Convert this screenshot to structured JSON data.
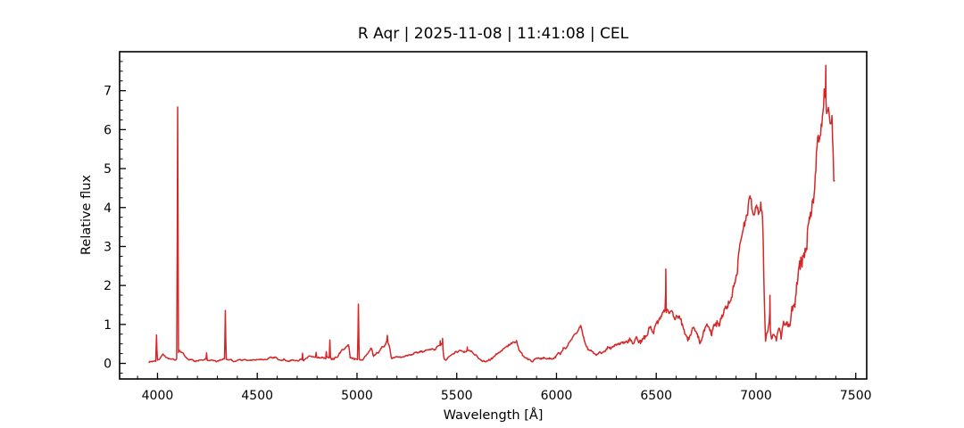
{
  "chart_data": {
    "type": "line",
    "title": "R Aqr | 2025-11-08 | 11:41:08 | CEL",
    "xlabel": "Wavelength [Å]",
    "ylabel": "Relative flux",
    "xlim": [
      3810,
      7555
    ],
    "ylim": [
      -0.4,
      8.0
    ],
    "x_major_ticks": [
      4000,
      4500,
      5000,
      5500,
      6000,
      6500,
      7000,
      7500
    ],
    "x_minor_step": 100,
    "y_major_ticks": [
      0,
      1,
      2,
      3,
      4,
      5,
      6,
      7
    ],
    "y_minor_step": 0.25,
    "grid": false,
    "legend": "none",
    "line_color": "#d62728",
    "background_color": "#ffffff",
    "wavelength_range": [
      3958,
      7395
    ],
    "sample_step": 3,
    "noise_seed": 7,
    "envelope": [
      [
        3958,
        0.05
      ],
      [
        3975,
        0.07
      ],
      [
        3992,
        0.08
      ],
      [
        4008,
        0.1
      ],
      [
        4028,
        0.22
      ],
      [
        4045,
        0.12
      ],
      [
        4065,
        0.08
      ],
      [
        4085,
        0.09
      ],
      [
        4098,
        0.12
      ],
      [
        4108,
        0.33
      ],
      [
        4122,
        0.28
      ],
      [
        4138,
        0.16
      ],
      [
        4155,
        0.1
      ],
      [
        4180,
        0.08
      ],
      [
        4210,
        0.08
      ],
      [
        4242,
        0.1
      ],
      [
        4262,
        0.08
      ],
      [
        4295,
        0.07
      ],
      [
        4320,
        0.08
      ],
      [
        4337,
        0.1
      ],
      [
        4355,
        0.08
      ],
      [
        4385,
        0.06
      ],
      [
        4415,
        0.08
      ],
      [
        4445,
        0.09
      ],
      [
        4475,
        0.07
      ],
      [
        4505,
        0.08
      ],
      [
        4535,
        0.09
      ],
      [
        4565,
        0.12
      ],
      [
        4590,
        0.12
      ],
      [
        4615,
        0.09
      ],
      [
        4640,
        0.08
      ],
      [
        4665,
        0.09
      ],
      [
        4690,
        0.1
      ],
      [
        4715,
        0.12
      ],
      [
        4740,
        0.12
      ],
      [
        4765,
        0.14
      ],
      [
        4790,
        0.13
      ],
      [
        4815,
        0.13
      ],
      [
        4840,
        0.15
      ],
      [
        4858,
        0.18
      ],
      [
        4880,
        0.15
      ],
      [
        4905,
        0.22
      ],
      [
        4930,
        0.32
      ],
      [
        4950,
        0.45
      ],
      [
        4958,
        0.5
      ],
      [
        4966,
        0.12
      ],
      [
        4982,
        0.1
      ],
      [
        5000,
        0.12
      ],
      [
        5015,
        0.09
      ],
      [
        5035,
        0.16
      ],
      [
        5055,
        0.3
      ],
      [
        5072,
        0.43
      ],
      [
        5082,
        0.16
      ],
      [
        5095,
        0.24
      ],
      [
        5115,
        0.35
      ],
      [
        5135,
        0.46
      ],
      [
        5150,
        0.55
      ],
      [
        5162,
        0.42
      ],
      [
        5172,
        0.12
      ],
      [
        5185,
        0.14
      ],
      [
        5215,
        0.18
      ],
      [
        5245,
        0.21
      ],
      [
        5275,
        0.24
      ],
      [
        5305,
        0.27
      ],
      [
        5335,
        0.3
      ],
      [
        5365,
        0.32
      ],
      [
        5395,
        0.36
      ],
      [
        5414,
        0.46
      ],
      [
        5427,
        0.52
      ],
      [
        5436,
        0.1
      ],
      [
        5455,
        0.14
      ],
      [
        5478,
        0.24
      ],
      [
        5498,
        0.32
      ],
      [
        5515,
        0.32
      ],
      [
        5535,
        0.28
      ],
      [
        5553,
        0.33
      ],
      [
        5572,
        0.3
      ],
      [
        5592,
        0.22
      ],
      [
        5612,
        0.15
      ],
      [
        5632,
        0.1
      ],
      [
        5652,
        0.08
      ],
      [
        5672,
        0.14
      ],
      [
        5695,
        0.22
      ],
      [
        5718,
        0.3
      ],
      [
        5742,
        0.38
      ],
      [
        5766,
        0.46
      ],
      [
        5788,
        0.55
      ],
      [
        5800,
        0.6
      ],
      [
        5812,
        0.35
      ],
      [
        5830,
        0.2
      ],
      [
        5852,
        0.09
      ],
      [
        5875,
        0.05
      ],
      [
        5898,
        0.08
      ],
      [
        5920,
        0.12
      ],
      [
        5942,
        0.15
      ],
      [
        5962,
        0.13
      ],
      [
        5985,
        0.17
      ],
      [
        6008,
        0.23
      ],
      [
        6030,
        0.3
      ],
      [
        6052,
        0.42
      ],
      [
        6074,
        0.57
      ],
      [
        6096,
        0.75
      ],
      [
        6112,
        0.92
      ],
      [
        6122,
        1.0
      ],
      [
        6132,
        0.72
      ],
      [
        6145,
        0.45
      ],
      [
        6158,
        0.32
      ],
      [
        6175,
        0.28
      ],
      [
        6200,
        0.23
      ],
      [
        6225,
        0.27
      ],
      [
        6250,
        0.32
      ],
      [
        6275,
        0.37
      ],
      [
        6300,
        0.42
      ],
      [
        6325,
        0.47
      ],
      [
        6350,
        0.52
      ],
      [
        6375,
        0.56
      ],
      [
        6400,
        0.6
      ],
      [
        6425,
        0.68
      ],
      [
        6450,
        0.8
      ],
      [
        6470,
        0.93
      ],
      [
        6490,
        0.87
      ],
      [
        6512,
        1.05
      ],
      [
        6532,
        1.2
      ],
      [
        6550,
        1.33
      ],
      [
        6565,
        1.4
      ],
      [
        6582,
        1.28
      ],
      [
        6600,
        1.18
      ],
      [
        6618,
        1.1
      ],
      [
        6636,
        0.78
      ],
      [
        6652,
        0.62
      ],
      [
        6668,
        0.8
      ],
      [
        6686,
        0.94
      ],
      [
        6704,
        0.82
      ],
      [
        6722,
        0.66
      ],
      [
        6740,
        0.88
      ],
      [
        6758,
        0.82
      ],
      [
        6776,
        0.76
      ],
      [
        6794,
        0.88
      ],
      [
        6812,
        1.02
      ],
      [
        6830,
        1.22
      ],
      [
        6848,
        1.45
      ],
      [
        6866,
        1.72
      ],
      [
        6884,
        2.1
      ],
      [
        6902,
        2.5
      ],
      [
        6920,
        2.92
      ],
      [
        6938,
        3.45
      ],
      [
        6954,
        3.9
      ],
      [
        6968,
        4.15
      ],
      [
        6982,
        4.0
      ],
      [
        6996,
        3.92
      ],
      [
        7010,
        4.05
      ],
      [
        7024,
        4.12
      ],
      [
        7034,
        3.85
      ],
      [
        7041,
        2.0
      ],
      [
        7048,
        0.72
      ],
      [
        7058,
        0.85
      ],
      [
        7068,
        1.25
      ],
      [
        7077,
        0.62
      ],
      [
        7089,
        0.76
      ],
      [
        7101,
        0.56
      ],
      [
        7114,
        0.8
      ],
      [
        7127,
        0.7
      ],
      [
        7139,
        0.85
      ],
      [
        7151,
        0.76
      ],
      [
        7164,
        0.94
      ],
      [
        7177,
        1.1
      ],
      [
        7190,
        1.38
      ],
      [
        7203,
        1.72
      ],
      [
        7216,
        2.08
      ],
      [
        7230,
        2.48
      ],
      [
        7243,
        2.92
      ],
      [
        7257,
        3.38
      ],
      [
        7270,
        3.88
      ],
      [
        7284,
        4.45
      ],
      [
        7297,
        5.05
      ],
      [
        7310,
        5.65
      ],
      [
        7322,
        6.25
      ],
      [
        7334,
        6.75
      ],
      [
        7346,
        7.15
      ],
      [
        7356,
        6.55
      ],
      [
        7364,
        6.95
      ],
      [
        7372,
        6.4
      ],
      [
        7380,
        6.65
      ],
      [
        7387,
        5.6
      ],
      [
        7392,
        5.0
      ],
      [
        7395,
        4.7
      ]
    ],
    "noise_amplitude": [
      [
        3958,
        0.03
      ],
      [
        4400,
        0.03
      ],
      [
        4700,
        0.045
      ],
      [
        4860,
        0.05
      ],
      [
        4960,
        0.05
      ],
      [
        5180,
        0.04
      ],
      [
        5600,
        0.045
      ],
      [
        5700,
        0.055
      ],
      [
        5850,
        0.05
      ],
      [
        6100,
        0.06
      ],
      [
        6200,
        0.07
      ],
      [
        6350,
        0.1
      ],
      [
        6470,
        0.15
      ],
      [
        6600,
        0.17
      ],
      [
        6700,
        0.18
      ],
      [
        6820,
        0.22
      ],
      [
        6900,
        0.28
      ],
      [
        6990,
        0.26
      ],
      [
        7035,
        0.25
      ],
      [
        7055,
        0.18
      ],
      [
        7120,
        0.18
      ],
      [
        7180,
        0.28
      ],
      [
        7230,
        0.45
      ],
      [
        7280,
        0.55
      ],
      [
        7340,
        0.6
      ],
      [
        7395,
        0.6
      ]
    ],
    "emission_peaks": [
      [
        3995,
        0.73,
        4
      ],
      [
        4101,
        6.58,
        4
      ],
      [
        4246,
        0.27,
        3
      ],
      [
        4340,
        1.36,
        4
      ],
      [
        4727,
        0.26,
        3
      ],
      [
        4795,
        0.28,
        3
      ],
      [
        4846,
        0.3,
        3
      ],
      [
        4864,
        0.6,
        4
      ],
      [
        5007,
        1.52,
        4
      ],
      [
        5152,
        0.72,
        3
      ],
      [
        5417,
        0.58,
        3
      ],
      [
        5429,
        0.64,
        3
      ],
      [
        5553,
        0.42,
        3
      ],
      [
        6548,
        2.42,
        4
      ],
      [
        7070,
        1.75,
        4
      ],
      [
        7350,
        7.65,
        5
      ]
    ]
  }
}
